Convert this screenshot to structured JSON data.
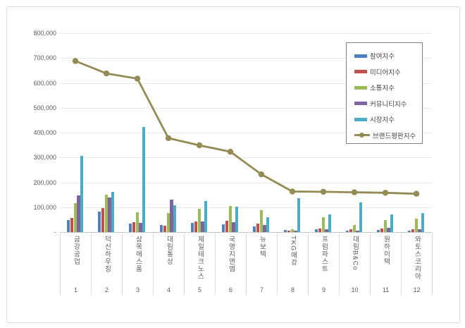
{
  "window": {
    "background": "#ffffff",
    "frame_border_color": "#d9d9d9"
  },
  "chart_data": {
    "type": "bar",
    "subtype": "grouped-bar-with-line-overlay",
    "title": "",
    "xlabel": "",
    "ylabel": "",
    "categories": [
      "금강공업",
      "덕신하우징",
      "삼목에스폼",
      "대림통상",
      "제일테크노스",
      "국영지앤엠",
      "뉴보텍",
      "TKG애강",
      "프럼파스트",
      "대림B&Co",
      "원하이텍",
      "와토스코리아"
    ],
    "rank_labels": [
      "1",
      "2",
      "3",
      "4",
      "5",
      "6",
      "7",
      "8",
      "9",
      "10",
      "11",
      "12"
    ],
    "series": [
      {
        "name": "참여지수",
        "type": "bar",
        "color": "#4f81bd",
        "values": [
          48000,
          81000,
          33000,
          29000,
          36000,
          31000,
          23000,
          8000,
          10000,
          6000,
          8000,
          7000
        ]
      },
      {
        "name": "미디어지수",
        "type": "bar",
        "color": "#c0504d",
        "values": [
          58000,
          97000,
          40000,
          26000,
          42000,
          46000,
          33000,
          7000,
          14000,
          10000,
          14000,
          11000
        ]
      },
      {
        "name": "소통지수",
        "type": "bar",
        "color": "#9bbb59",
        "values": [
          116000,
          150000,
          80000,
          77000,
          94000,
          106000,
          89000,
          11000,
          61000,
          28000,
          48000,
          53000
        ]
      },
      {
        "name": "커뮤니티지수",
        "type": "bar",
        "color": "#8064a2",
        "values": [
          148000,
          139000,
          37000,
          131000,
          44000,
          39000,
          28000,
          7000,
          11000,
          7000,
          16000,
          12000
        ]
      },
      {
        "name": "시장지수",
        "type": "bar",
        "color": "#4bacc6",
        "values": [
          306000,
          161000,
          422000,
          109000,
          125000,
          103000,
          59000,
          137000,
          70000,
          118000,
          72000,
          76000
        ]
      },
      {
        "name": "브랜드평판지수",
        "type": "line",
        "color": "#948a54",
        "values": [
          688000,
          638000,
          617000,
          378000,
          349000,
          323000,
          232000,
          163000,
          162000,
          160000,
          158000,
          154000
        ]
      }
    ],
    "ylim": [
      0,
      800000
    ],
    "ytick_step": 100000,
    "ytick_labels_top_to_bottom": [
      "800,000",
      "700,000",
      "600,000",
      "500,000",
      "400,000",
      "300,000",
      "200,000",
      "100,000",
      "-"
    ],
    "grid": true,
    "legend_position": "inside-top-right",
    "colors": {
      "gridline": "#e8e8e8",
      "axis_line": "#c6c6c6",
      "axis_text": "#595959",
      "legend_border": "#7f7f7f",
      "legend_text": "#404040",
      "category_separator": "#dcdcdc"
    }
  }
}
